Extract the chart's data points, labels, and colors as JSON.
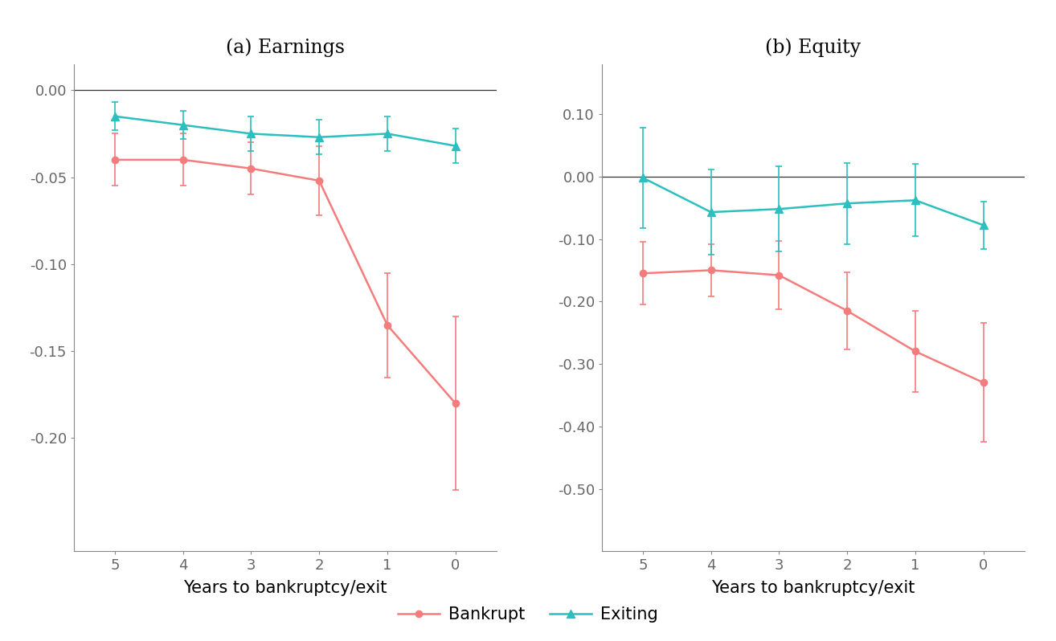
{
  "title_a": "(a) Earnings",
  "title_b": "(b) Equity",
  "xlabel": "Years to bankruptcy/exit",
  "legend_bankrupt": "Bankrupt",
  "legend_exiting": "Exiting",
  "x": [
    5,
    4,
    3,
    2,
    1,
    0
  ],
  "earnings": {
    "bankrupt_y": [
      -0.04,
      -0.04,
      -0.045,
      -0.052,
      -0.135,
      -0.18
    ],
    "bankrupt_err": [
      0.015,
      0.015,
      0.015,
      0.02,
      0.03,
      0.05
    ],
    "exiting_y": [
      -0.015,
      -0.02,
      -0.025,
      -0.027,
      -0.025,
      -0.032
    ],
    "exiting_err": [
      0.008,
      0.008,
      0.01,
      0.01,
      0.01,
      0.01
    ],
    "ylim": [
      -0.265,
      0.015
    ],
    "yticks": [
      0.0,
      -0.05,
      -0.1,
      -0.15,
      -0.2
    ],
    "yticklabels": [
      "0.00",
      "-0.05",
      "-0.10",
      "-0.15",
      "-0.20"
    ]
  },
  "equity": {
    "bankrupt_y": [
      -0.155,
      -0.15,
      -0.158,
      -0.215,
      -0.28,
      -0.33
    ],
    "bankrupt_err": [
      0.05,
      0.042,
      0.055,
      0.062,
      0.065,
      0.095
    ],
    "exiting_y": [
      -0.002,
      -0.057,
      -0.052,
      -0.043,
      -0.038,
      -0.078
    ],
    "exiting_err": [
      0.08,
      0.068,
      0.068,
      0.065,
      0.058,
      0.038
    ],
    "ylim": [
      -0.6,
      0.18
    ],
    "yticks": [
      0.1,
      0.0,
      -0.1,
      -0.2,
      -0.3,
      -0.4,
      -0.5
    ],
    "yticklabels": [
      "0.10",
      "0.00",
      "-0.10",
      "-0.20",
      "-0.30",
      "-0.40",
      "-0.50"
    ]
  },
  "bankrupt_color": "#F47C7C",
  "exiting_color": "#2BBFBF",
  "ref_line_color": "#333333",
  "tick_color": "#666666",
  "spine_color": "#888888",
  "background_color": "#FFFFFF",
  "title_fontsize": 17,
  "label_fontsize": 15,
  "tick_fontsize": 13,
  "legend_fontsize": 15,
  "line_width": 1.8,
  "marker_size_circle": 6,
  "marker_size_triangle": 7,
  "cap_size": 3,
  "cap_thick": 1.2,
  "elinewidth": 1.2
}
